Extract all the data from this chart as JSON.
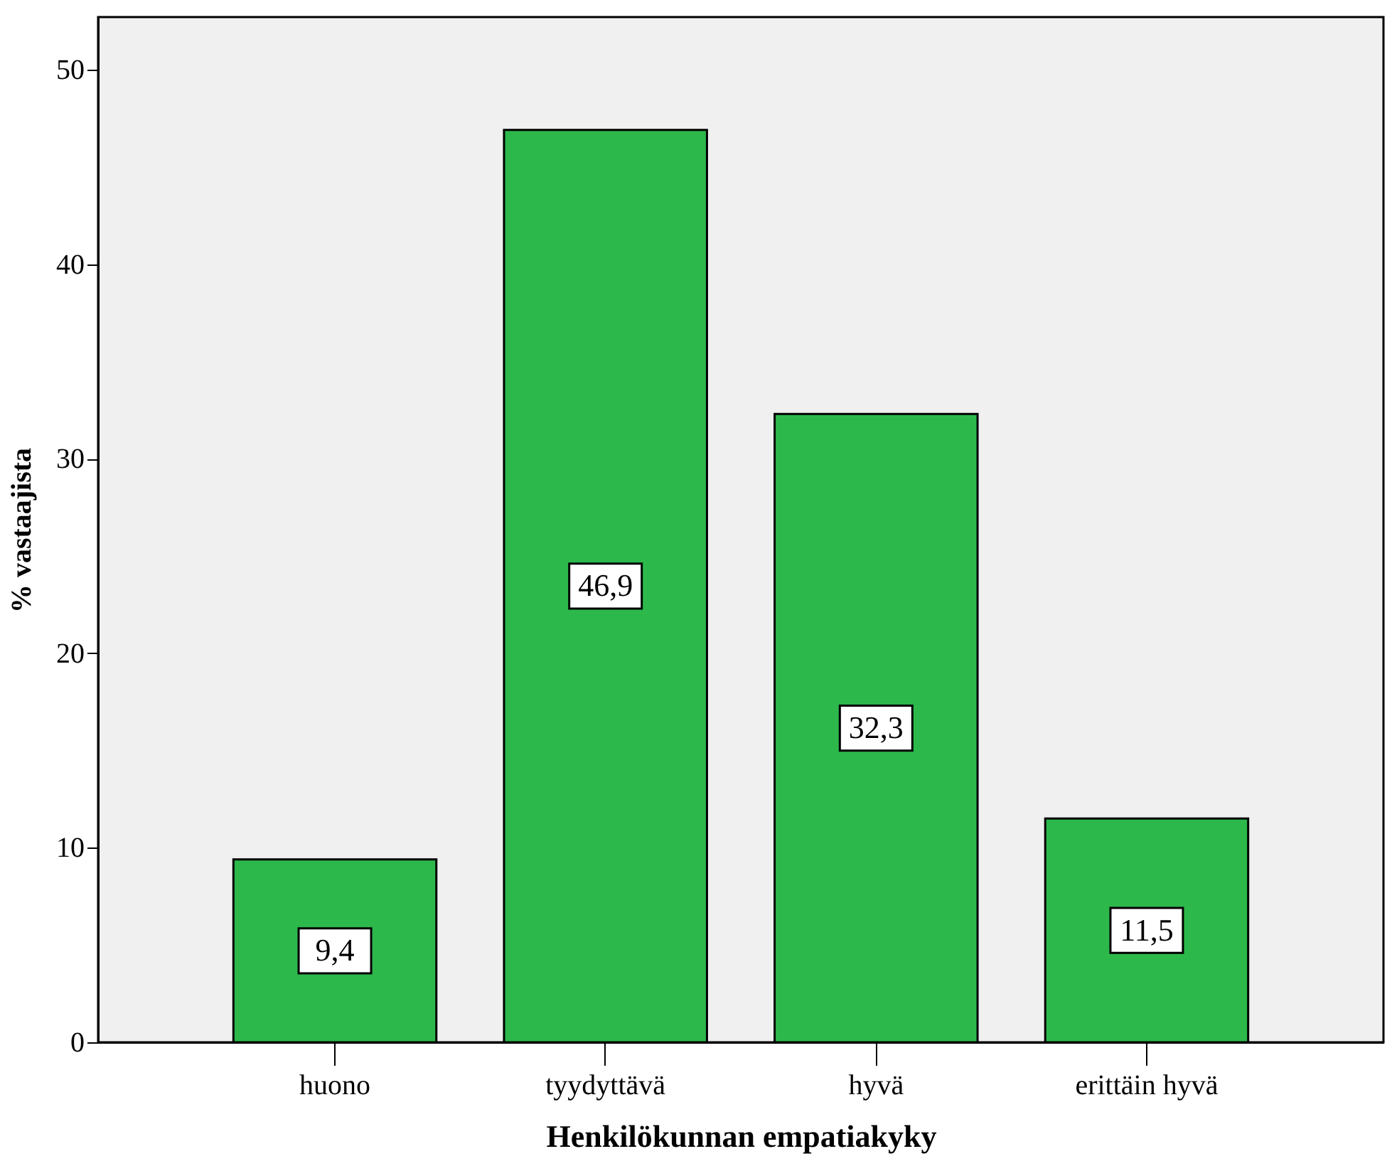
{
  "chart_data": {
    "type": "bar",
    "xlabel": "Henkilökunnan empatiakyky",
    "ylabel": "% vastaajista",
    "categories": [
      "huono",
      "tyydyttävä",
      "hyvä",
      "erittäin hyvä"
    ],
    "values": [
      9.4,
      46.9,
      32.3,
      11.5
    ],
    "value_labels": [
      "9,4",
      "46,9",
      "32,3",
      "11,5"
    ],
    "color": "#2db84b",
    "ylim": [
      0,
      52.7
    ],
    "yticks": [
      0,
      10,
      20,
      30,
      40,
      50
    ],
    "grid": false
  }
}
